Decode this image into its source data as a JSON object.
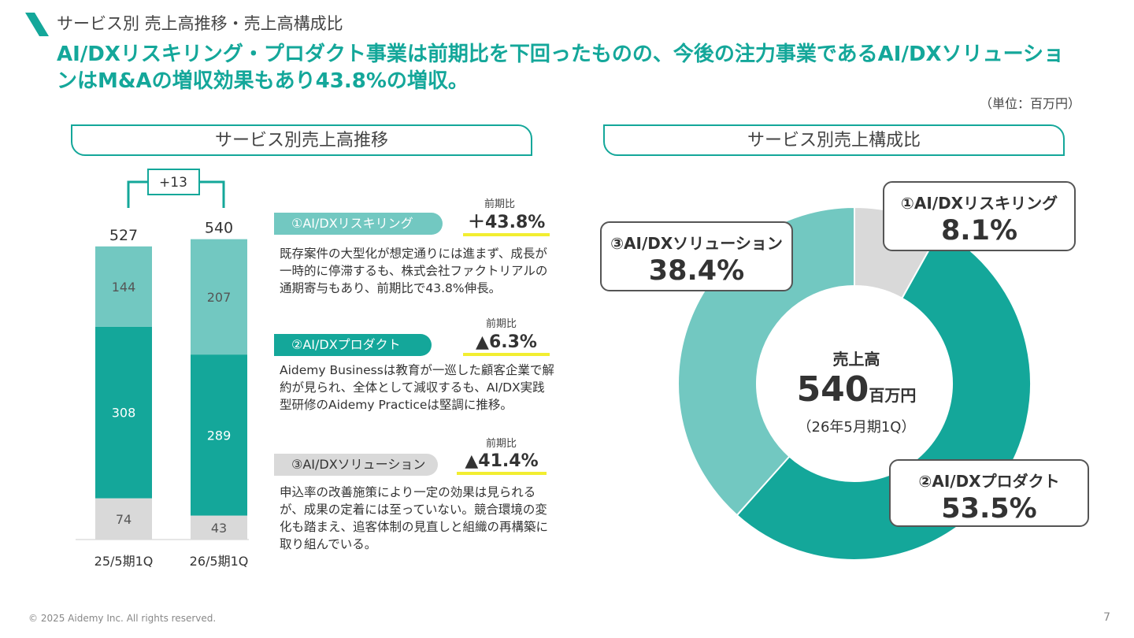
{
  "header": {
    "section_title": "サービス別 売上高推移・売上高構成比",
    "headline": "AI/DXリスキリング・プロダクト事業は前期比を下回ったものの、今後の注力事業であるAI/DXソリューションはM&Aの増収効果もあり43.8%の増収。",
    "unit_note": "（単位：百万円）"
  },
  "left_panel": {
    "title": "サービス別売上高推移",
    "diff_label": "+13",
    "segments": [
      {
        "label": "③AI/DXソリューション",
        "yoy_caption": "前期比",
        "yoy_value": "＋43.8%",
        "description": "既存案件の大型化が想定通りには進まず、成長が一時的に停滞するも、株式会社ファクトリアルの通期寄与もあり、前期比で43.8%伸長。"
      },
      {
        "label": "②AI/DXプロダクト",
        "yoy_caption": "前期比",
        "yoy_value": "▲6.3%",
        "description": "Aidemy Businessは教育が一巡した顧客企業で解約が見られ、全体として減収するも、AI/DX実践型研修のAidemy Practiceは堅調に推移。"
      },
      {
        "label": "①AI/DXリスキリング",
        "yoy_caption": "前期比",
        "yoy_value": "▲41.4%",
        "description": "申込率の改善施策により一定の効果は見られるが、成果の定着には至っていない。競合環境の変化も踏まえ、追客体制の見直しと組織の再構築に取り組んでいる。"
      }
    ]
  },
  "right_panel": {
    "title": "サービス別売上構成比",
    "center_title": "売上高",
    "center_value": "540",
    "center_unit": "百万円",
    "center_period": "（26年5月期1Q）",
    "callouts": [
      {
        "name": "①AI/DXリスキリング",
        "pct": "8.1%"
      },
      {
        "name": "②AI/DXプロダクト",
        "pct": "53.5%"
      },
      {
        "name": "③AI/DXソリューション",
        "pct": "38.4%"
      }
    ]
  },
  "chart_data": [
    {
      "type": "bar",
      "stacked": true,
      "categories": [
        "25/5期1Q",
        "26/5期1Q"
      ],
      "totals": [
        527,
        540
      ],
      "series": [
        {
          "name": "①AI/DXリスキリング",
          "values": [
            74,
            43
          ],
          "color": "#D9D9D9"
        },
        {
          "name": "②AI/DXプロダクト",
          "values": [
            308,
            289
          ],
          "color": "#14A79A"
        },
        {
          "name": "③AI/DXソリューション",
          "values": [
            144,
            207
          ],
          "color": "#72C8C1"
        }
      ]
    },
    {
      "type": "pie",
      "donut": true,
      "labels": [
        "①AI/DXリスキリング",
        "②AI/DXプロダクト",
        "③AI/DXソリューション"
      ],
      "values": [
        8.1,
        53.5,
        38.4
      ],
      "colors": [
        "#D9D9D9",
        "#14A79A",
        "#72C8C1"
      ]
    }
  ],
  "footer": {
    "copyright": "© 2025 Aidemy Inc. All rights reserved.",
    "page_number": "7"
  }
}
